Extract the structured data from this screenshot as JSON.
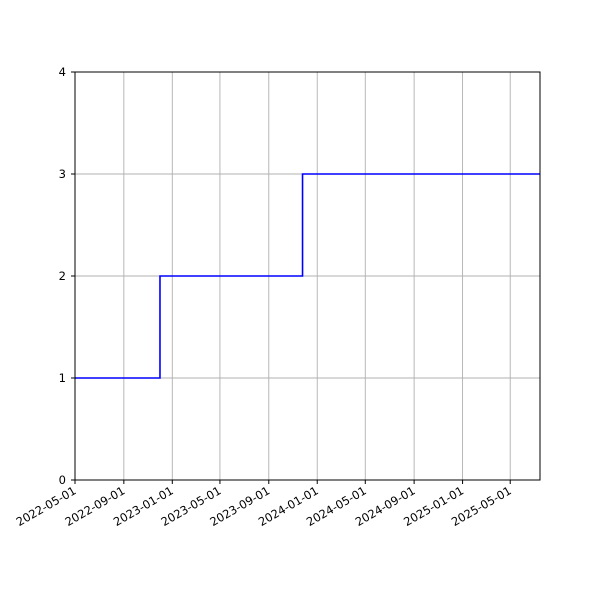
{
  "chart_data": {
    "type": "line",
    "title": "",
    "xlabel": "",
    "ylabel": "",
    "x_axis": {
      "scale": "date",
      "range": [
        "2022-05-01",
        "2025-07-15"
      ],
      "tick_labels": [
        "2022-05-01",
        "2022-09-01",
        "2023-01-01",
        "2023-05-01",
        "2023-09-01",
        "2024-01-01",
        "2024-05-01",
        "2024-09-01",
        "2025-01-01",
        "2025-05-01"
      ],
      "tick_label_rotation": "30° slanted"
    },
    "y_axis": {
      "range": [
        0,
        4
      ],
      "ticks": [
        0,
        1,
        2,
        3,
        4
      ],
      "tick_labels": [
        "0",
        "1",
        "2",
        "3",
        "4"
      ]
    },
    "grid": true,
    "legend": "none",
    "step": "post",
    "series": [
      {
        "color": "#0000ff",
        "points": [
          {
            "x": "2022-05-01",
            "y": 1
          },
          {
            "x": "2022-12-01",
            "y": 2
          },
          {
            "x": "2023-11-25",
            "y": 3
          },
          {
            "x": "2025-07-15",
            "y": 3
          }
        ]
      }
    ]
  }
}
